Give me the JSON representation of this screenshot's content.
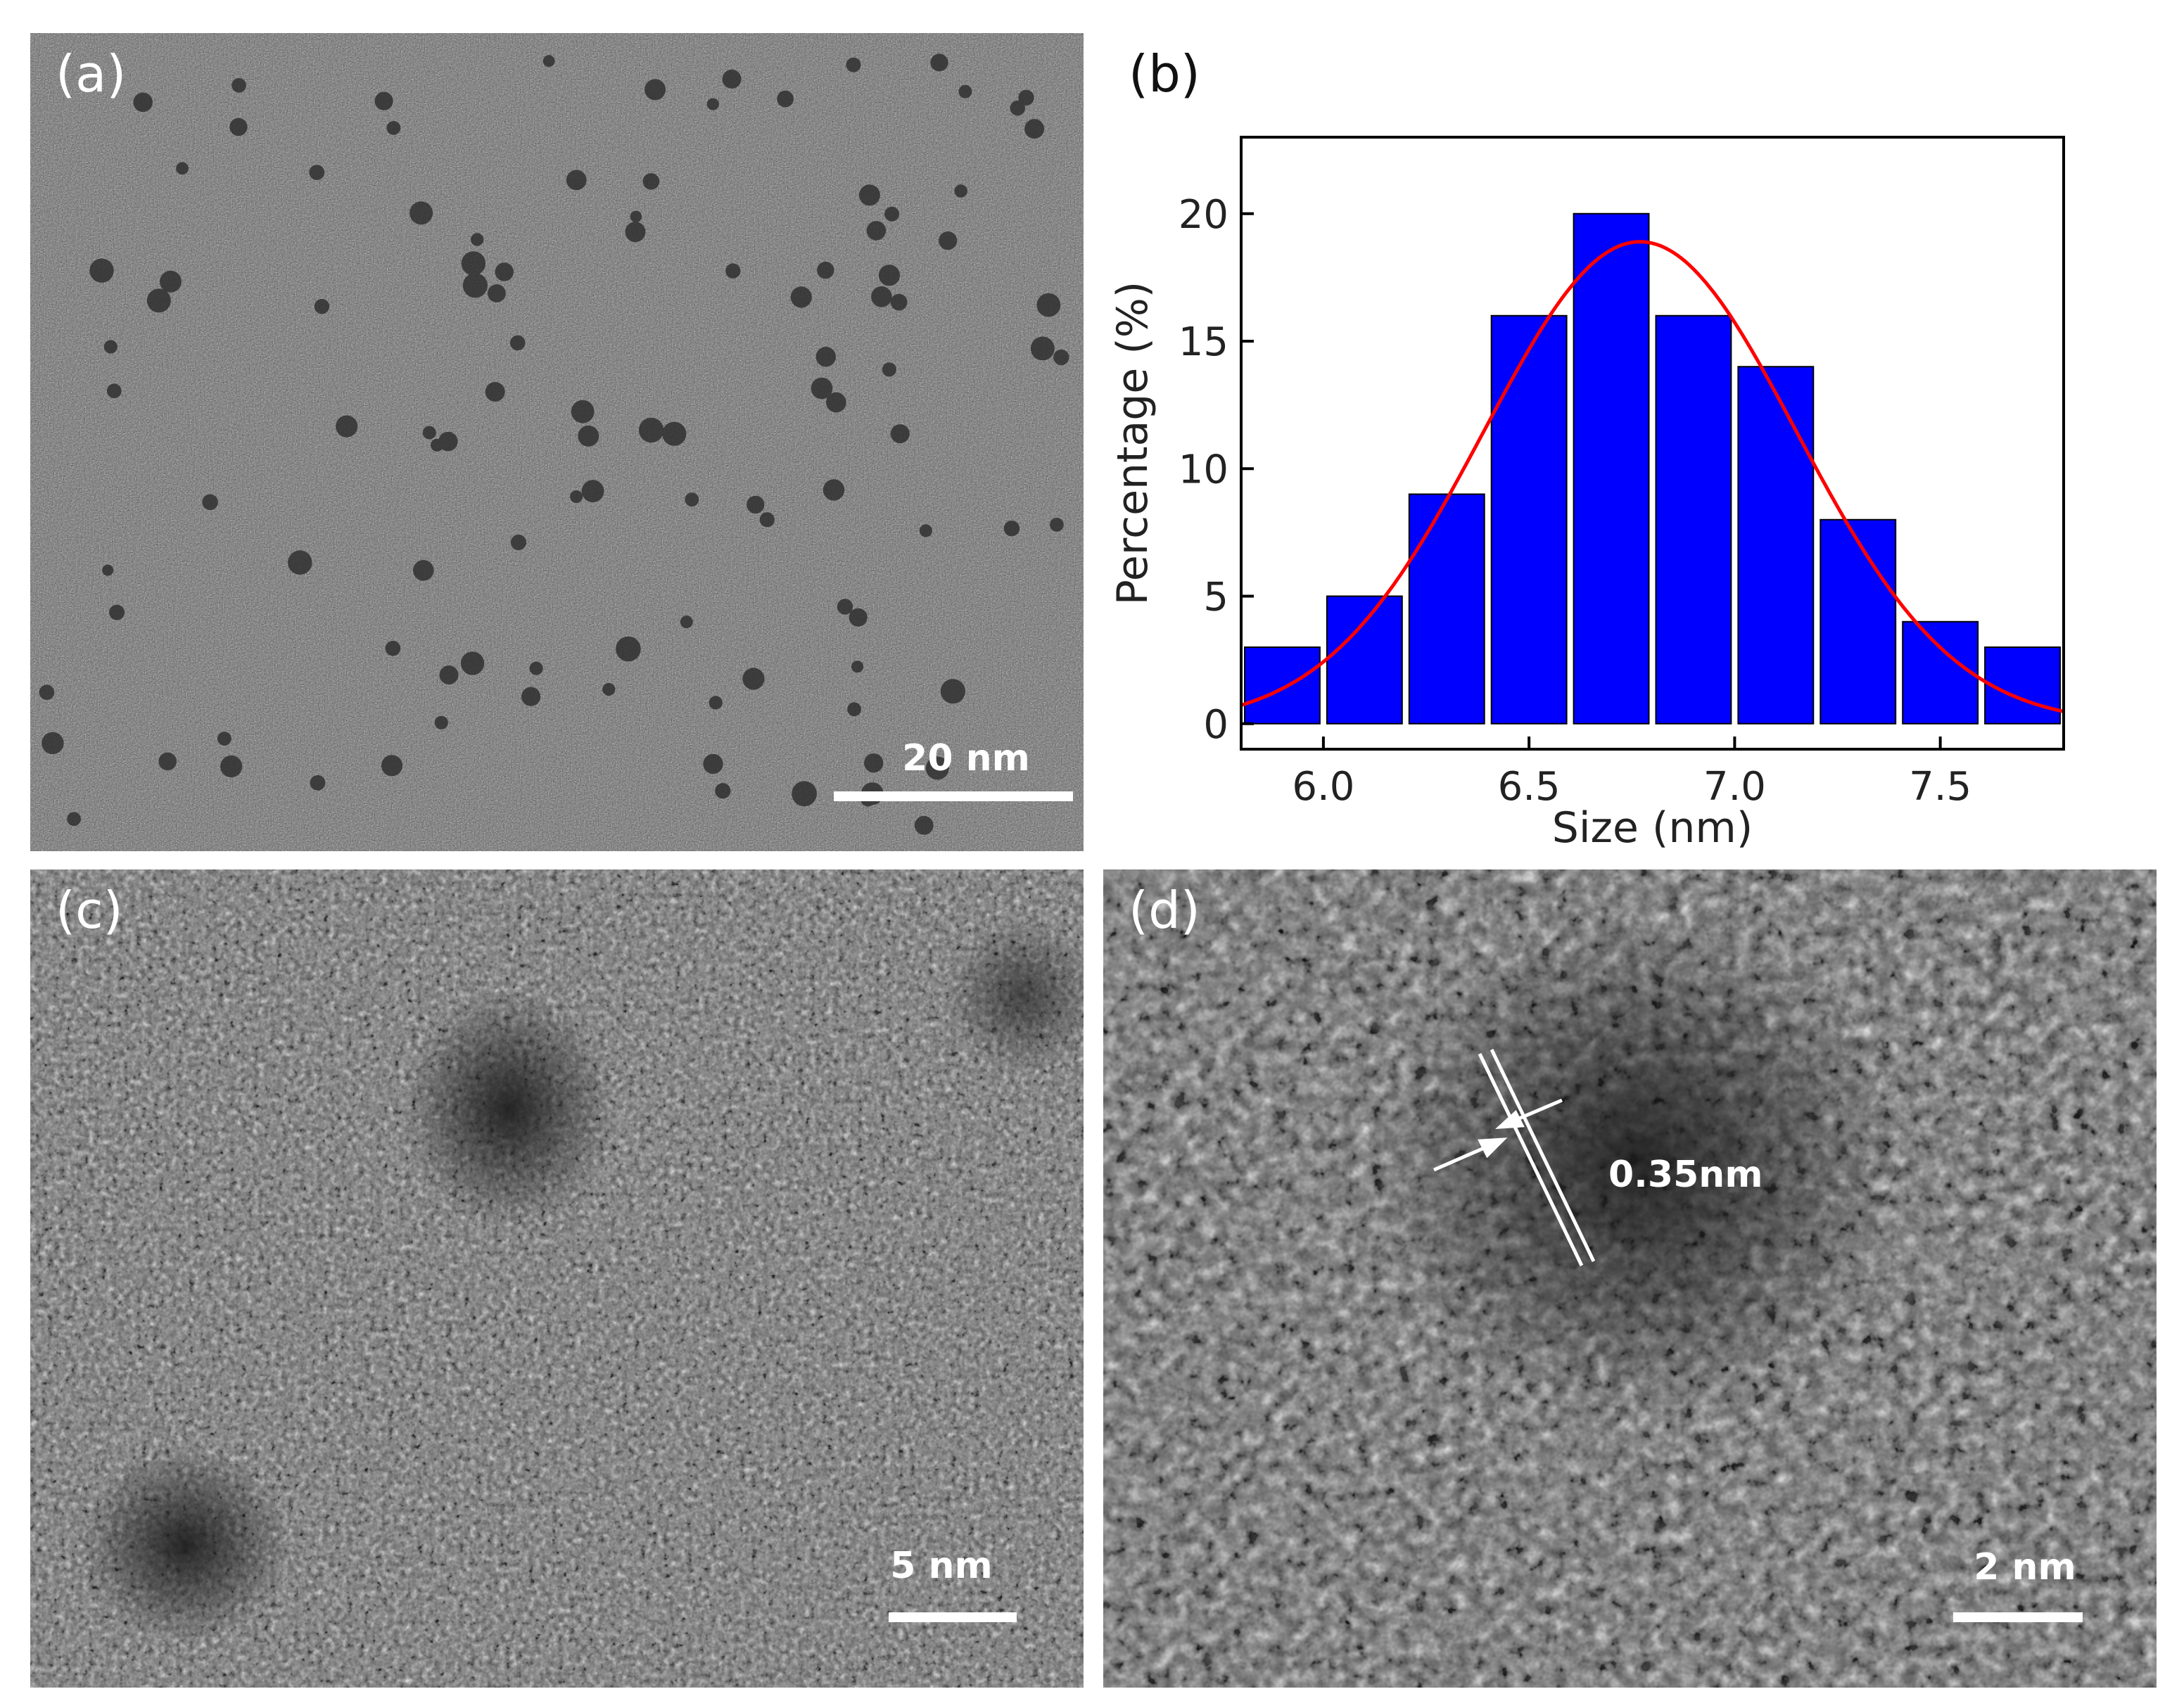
{
  "panels": {
    "a": {
      "label": "(a)",
      "scale_bar": "20 nm"
    },
    "b": {
      "label": "(b)"
    },
    "c": {
      "label": "(c)",
      "scale_bar": "5 nm"
    },
    "d": {
      "label": "(d)",
      "scale_bar": "2 nm",
      "lattice_spacing": "0.35nm"
    }
  },
  "chart_data": {
    "type": "bar",
    "xlabel": "Size (nm)",
    "ylabel": "Percentage (%)",
    "x": [
      5.9,
      6.1,
      6.3,
      6.5,
      6.7,
      6.9,
      7.1,
      7.3,
      7.5,
      7.7
    ],
    "values": [
      3,
      5,
      9,
      16,
      20,
      16,
      14,
      8,
      4,
      3
    ],
    "xlim": [
      5.8,
      7.8
    ],
    "ylim": [
      -1,
      23
    ],
    "xticks": [
      "6.0",
      "6.5",
      "7.0",
      "7.5"
    ],
    "xtick_values": [
      6.0,
      6.5,
      7.0,
      7.5
    ],
    "yticks": [
      "0",
      "5",
      "10",
      "15",
      "20"
    ],
    "ytick_values": [
      0,
      5,
      10,
      15,
      20
    ],
    "bar_color": "#0000ff",
    "fit": {
      "type": "gaussian",
      "center": 6.77,
      "sigma": 0.38,
      "amplitude": 18.9,
      "color": "#ff0000"
    },
    "grid": false
  }
}
